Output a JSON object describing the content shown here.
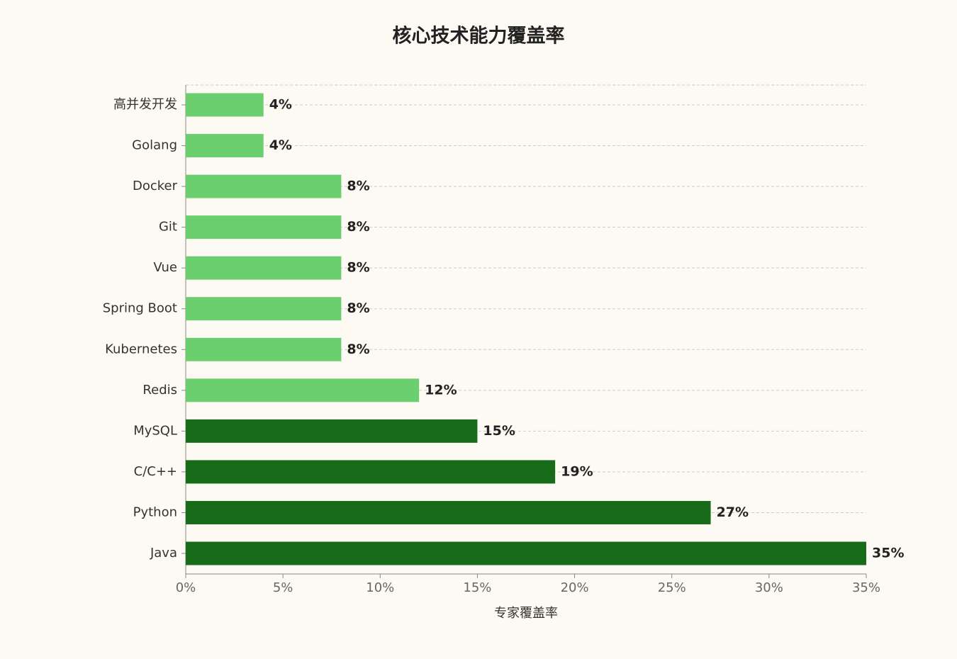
{
  "chart_data": {
    "type": "bar",
    "orientation": "horizontal",
    "title": "核心技术能力覆盖率",
    "x_label": "专家覆盖率",
    "categories": [
      "高并发开发",
      "Golang",
      "Docker",
      "Git",
      "Vue",
      "Spring Boot",
      "Kubernetes",
      "Redis",
      "MySQL",
      "C/C++",
      "Python",
      "Java"
    ],
    "values": [
      4,
      4,
      8,
      8,
      8,
      8,
      8,
      12,
      15,
      19,
      27,
      35
    ],
    "value_labels": [
      "4%",
      "4%",
      "8%",
      "8%",
      "8%",
      "8%",
      "8%",
      "12%",
      "15%",
      "19%",
      "27%",
      "35%"
    ],
    "colors": [
      "#6bcf6f",
      "#6bcf6f",
      "#6bcf6f",
      "#6bcf6f",
      "#6bcf6f",
      "#6bcf6f",
      "#6bcf6f",
      "#6bcf6f",
      "#176b19",
      "#176b19",
      "#176b19",
      "#176b19"
    ],
    "xlim": [
      0,
      35
    ],
    "xticks": [
      {
        "value": 0,
        "label": "0%"
      },
      {
        "value": 5,
        "label": "5%"
      },
      {
        "value": 10,
        "label": "10%"
      },
      {
        "value": 15,
        "label": "15%"
      },
      {
        "value": 20,
        "label": "20%"
      },
      {
        "value": 25,
        "label": "25%"
      },
      {
        "value": 30,
        "label": "30%"
      },
      {
        "value": 35,
        "label": "35%"
      }
    ],
    "grid": true
  }
}
